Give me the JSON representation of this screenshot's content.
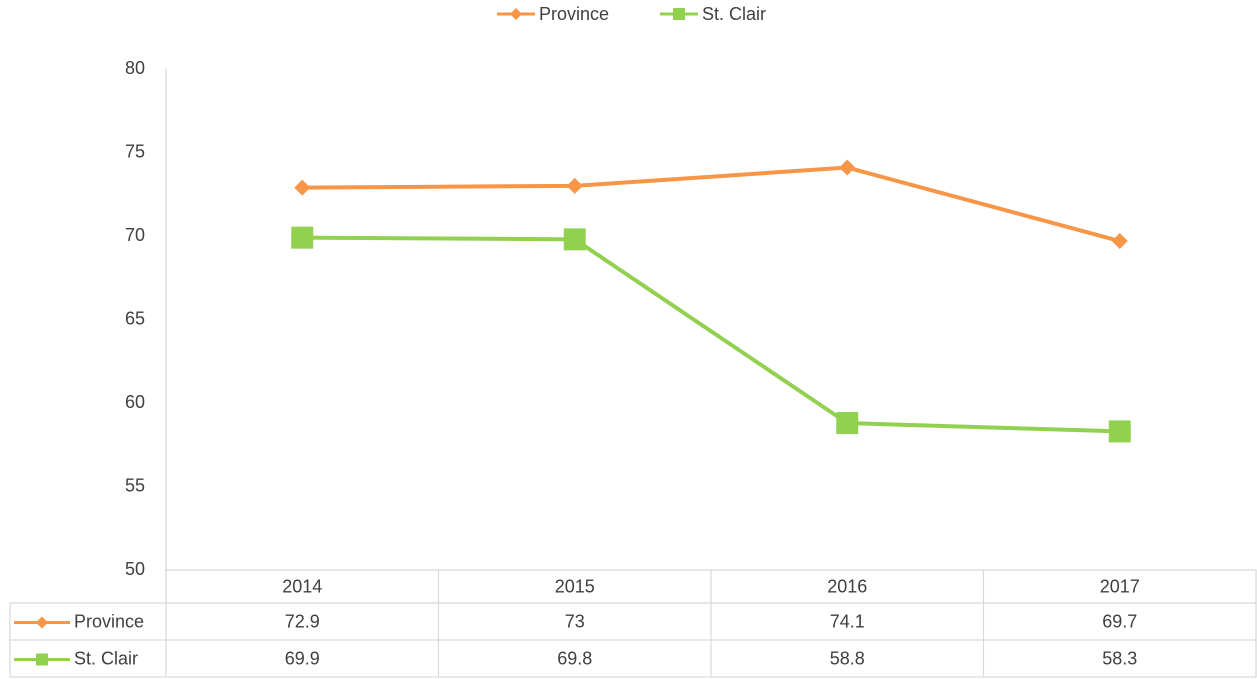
{
  "chart_data": {
    "type": "line",
    "categories": [
      "2014",
      "2015",
      "2016",
      "2017"
    ],
    "series": [
      {
        "name": "Province",
        "color": "#f79646",
        "marker": "diamond",
        "values": [
          72.9,
          73,
          74.1,
          69.7
        ]
      },
      {
        "name": "St. Clair",
        "color": "#92d050",
        "marker": "square",
        "values": [
          69.9,
          69.8,
          58.8,
          58.3
        ]
      }
    ],
    "ylim": [
      50,
      80
    ],
    "yticks": [
      50,
      55,
      60,
      65,
      70,
      75,
      80
    ],
    "legend": "top",
    "data_table": true
  }
}
